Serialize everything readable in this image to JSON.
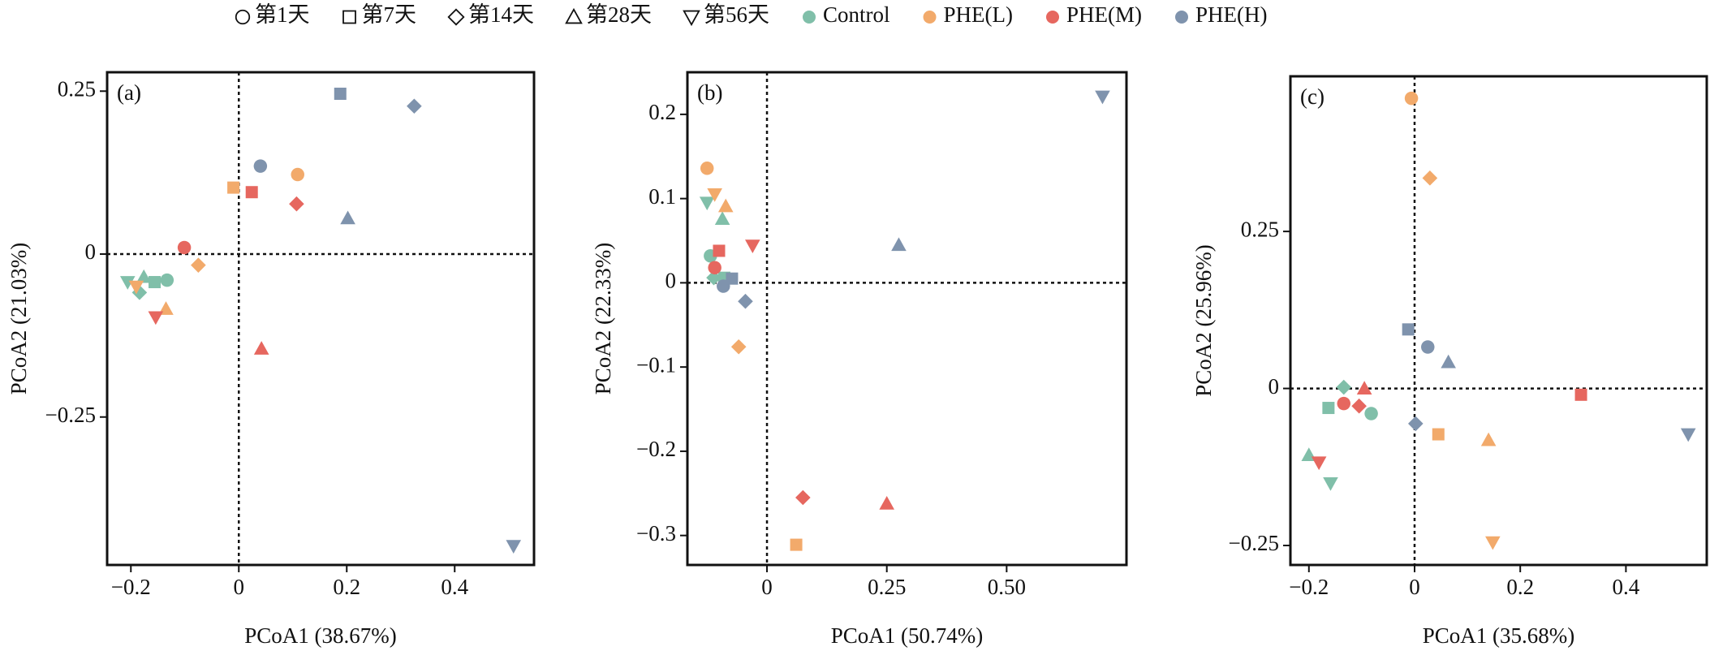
{
  "legend": {
    "markers": [
      {
        "label": "第1天",
        "marker": "circle"
      },
      {
        "label": "第7天",
        "marker": "square"
      },
      {
        "label": "第14天",
        "marker": "diamond"
      },
      {
        "label": "第28天",
        "marker": "triangle"
      },
      {
        "label": "第56天",
        "marker": "triangle-down"
      }
    ]
  },
  "chart_data": [
    {
      "type": "scatter",
      "label": "(a)",
      "x_label": "PCoA1 (38.67%)",
      "y_label": "PCoA2 (21.03%)",
      "xlim": [
        -0.244,
        0.547
      ],
      "ylim": [
        -0.477,
        0.279
      ],
      "zero_lines": true,
      "xticks": [
        {
          "value": -0.2,
          "label": "−0.2"
        },
        0,
        0.2,
        0.4
      ],
      "yticks": [
        0.25,
        0,
        {
          "value": -0.25,
          "label": "−0.25"
        }
      ],
      "series": [
        {
          "name": "Control",
          "color": "#80bfa9",
          "x": [
            -0.133,
            -0.156,
            -0.184,
            -0.176,
            -0.206
          ],
          "values": [
            -0.04,
            -0.043,
            -0.059,
            -0.035,
            -0.043
          ]
        },
        {
          "name": "PHE(L)",
          "color": "#f2aa6b",
          "x": [
            0.109,
            -0.01,
            -0.075,
            -0.135,
            -0.19
          ],
          "values": [
            0.122,
            0.102,
            -0.017,
            -0.084,
            -0.05
          ]
        },
        {
          "name": "PHE(M)",
          "color": "#e6675f",
          "x": [
            -0.101,
            0.024,
            0.107,
            0.042,
            -0.154
          ],
          "values": [
            0.01,
            0.095,
            0.077,
            -0.145,
            -0.097
          ]
        },
        {
          "name": "PHE(H)",
          "color": "#7f93ad",
          "x": [
            0.04,
            0.188,
            0.325,
            0.202,
            0.509
          ],
          "values": [
            0.135,
            0.246,
            0.227,
            0.055,
            -0.448
          ]
        }
      ]
    },
    {
      "type": "scatter",
      "label": "(b)",
      "x_label": "PCoA1 (50.74%)",
      "y_label": "PCoA2 (22.33%)",
      "xlim": [
        -0.166,
        0.75
      ],
      "ylim": [
        -0.335,
        0.25
      ],
      "zero_lines": true,
      "xticks": [
        0,
        0.25,
        {
          "value": 0.5,
          "label": "0.50"
        }
      ],
      "yticks": [
        0.2,
        0.1,
        0,
        {
          "value": -0.1,
          "label": "−0.1"
        },
        {
          "value": -0.2,
          "label": "−0.2"
        },
        {
          "value": -0.3,
          "label": "−0.3"
        }
      ],
      "series": [
        {
          "name": "Control",
          "color": "#80bfa9",
          "x": [
            -0.118,
            -0.089,
            -0.111,
            -0.093,
            -0.125
          ],
          "values": [
            0.032,
            0.006,
            0.006,
            0.076,
            0.095
          ]
        },
        {
          "name": "PHE(L)",
          "color": "#f2aa6b",
          "x": [
            -0.125,
            0.061,
            -0.059,
            -0.086,
            -0.109
          ],
          "values": [
            0.136,
            -0.311,
            -0.076,
            0.091,
            0.105
          ]
        },
        {
          "name": "PHE(M)",
          "color": "#e6675f",
          "x": [
            -0.109,
            -0.1,
            0.075,
            0.25,
            -0.03
          ],
          "values": [
            0.018,
            0.038,
            -0.255,
            -0.262,
            0.044
          ]
        },
        {
          "name": "PHE(H)",
          "color": "#7f93ad",
          "x": [
            -0.091,
            -0.073,
            -0.045,
            0.275,
            0.7
          ],
          "values": [
            -0.004,
            0.005,
            -0.022,
            0.045,
            0.221
          ]
        }
      ]
    },
    {
      "type": "scatter",
      "label": "(c)",
      "x_label": "PCoA1 (35.68%)",
      "y_label": "PCoA2 (25.96%)",
      "xlim": [
        -0.235,
        0.553
      ],
      "ylim": [
        -0.281,
        0.497
      ],
      "zero_lines": true,
      "xticks": [
        {
          "value": -0.2,
          "label": "−0.2"
        },
        0,
        0.2,
        0.4
      ],
      "yticks": [
        0.25,
        0,
        {
          "value": -0.25,
          "label": "−0.25"
        }
      ],
      "series": [
        {
          "name": "Control",
          "color": "#80bfa9",
          "x": [
            -0.082,
            -0.163,
            -0.134,
            -0.2,
            -0.159
          ],
          "values": [
            -0.04,
            -0.031,
            0.002,
            -0.106,
            -0.151
          ]
        },
        {
          "name": "PHE(L)",
          "color": "#f2aa6b",
          "x": [
            -0.006,
            0.045,
            0.029,
            0.14,
            0.148
          ],
          "values": [
            0.462,
            -0.073,
            0.335,
            -0.082,
            -0.245
          ]
        },
        {
          "name": "PHE(M)",
          "color": "#e6675f",
          "x": [
            -0.134,
            0.315,
            -0.105,
            -0.095,
            -0.181
          ],
          "values": [
            -0.024,
            -0.01,
            -0.028,
            0,
            -0.118
          ]
        },
        {
          "name": "PHE(H)",
          "color": "#7f93ad",
          "x": [
            0.025,
            -0.012,
            0.002,
            0.064,
            0.518
          ],
          "values": [
            0.066,
            0.094,
            -0.056,
            0.042,
            -0.073
          ]
        }
      ]
    }
  ]
}
